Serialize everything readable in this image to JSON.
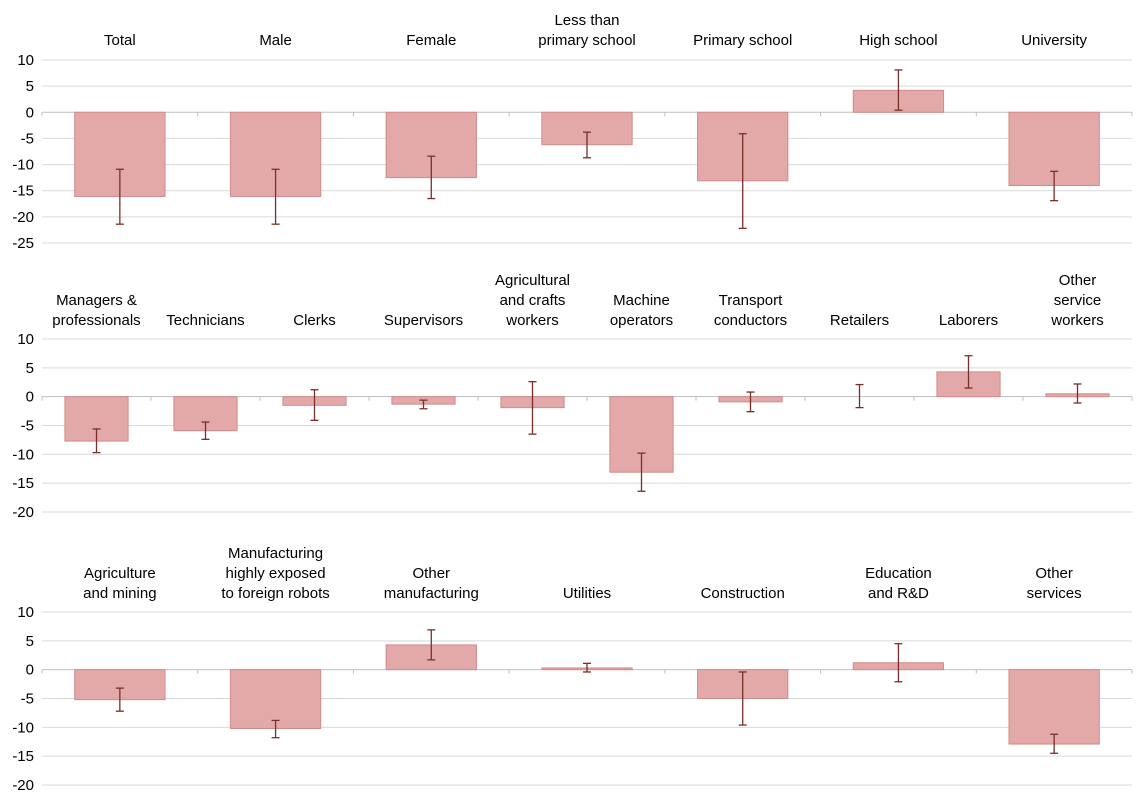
{
  "colors": {
    "bar_fill": "#e3a9a8",
    "bar_stroke": "#d08b8a",
    "error_bar": "#7a2e28",
    "grid": "#d9d9d9",
    "axis": "#bfbfbf"
  },
  "chart_data": [
    {
      "type": "bar",
      "error_bars": true,
      "grid": true,
      "ylim": [
        -25,
        10
      ],
      "yticks": [
        "10",
        "5",
        "0",
        "-5",
        "-10",
        "-15",
        "-20",
        "-25"
      ],
      "categories": [
        [
          "Total"
        ],
        [
          "Male"
        ],
        [
          "Female"
        ],
        [
          "Less than",
          "primary school"
        ],
        [
          "Primary school"
        ],
        [
          "High school"
        ],
        [
          "University"
        ]
      ],
      "values": [
        -16.1,
        -16.1,
        -12.5,
        -6.2,
        -13.1,
        4.2,
        -14.0
      ],
      "error_low": [
        -21.4,
        -21.4,
        -16.5,
        -8.7,
        -22.2,
        0.4,
        -16.9
      ],
      "error_high": [
        -10.9,
        -10.9,
        -8.4,
        -3.8,
        -4.1,
        8.1,
        -11.3
      ]
    },
    {
      "type": "bar",
      "error_bars": true,
      "grid": true,
      "ylim": [
        -20,
        10
      ],
      "yticks": [
        "10",
        "5",
        "0",
        "-5",
        "-10",
        "-15",
        "-20"
      ],
      "categories": [
        [
          "Managers &",
          "professionals"
        ],
        [
          "Technicians"
        ],
        [
          "Clerks"
        ],
        [
          "Supervisors"
        ],
        [
          "Agricultural",
          "and crafts",
          "workers"
        ],
        [
          "Machine",
          "operators"
        ],
        [
          "Transport",
          "conductors"
        ],
        [
          "Retailers"
        ],
        [
          "Laborers"
        ],
        [
          "Other",
          "service",
          "workers"
        ]
      ],
      "values": [
        -7.7,
        -5.9,
        -1.5,
        -1.3,
        -1.9,
        -13.1,
        -0.9,
        0.0,
        4.3,
        0.5
      ],
      "error_low": [
        -9.7,
        -7.4,
        -4.1,
        -2.1,
        -6.5,
        -16.4,
        -2.6,
        -1.9,
        1.5,
        -1.1
      ],
      "error_high": [
        -5.6,
        -4.4,
        1.2,
        -0.6,
        2.6,
        -9.8,
        0.8,
        2.1,
        7.1,
        2.2
      ]
    },
    {
      "type": "bar",
      "error_bars": true,
      "grid": true,
      "ylim": [
        -20,
        10
      ],
      "yticks": [
        "10",
        "5",
        "0",
        "-5",
        "-10",
        "-15",
        "-20"
      ],
      "categories": [
        [
          "Agriculture",
          "and mining"
        ],
        [
          "Manufacturing",
          "highly exposed",
          "to foreign robots"
        ],
        [
          "Other",
          "manufacturing"
        ],
        [
          "Utilities"
        ],
        [
          "Construction"
        ],
        [
          "Education",
          "and R&D"
        ],
        [
          "Other",
          "services"
        ]
      ],
      "values": [
        -5.2,
        -10.2,
        4.3,
        0.3,
        -5.0,
        1.2,
        -12.9
      ],
      "error_low": [
        -7.2,
        -11.8,
        1.7,
        -0.4,
        -9.6,
        -2.1,
        -14.5
      ],
      "error_high": [
        -3.2,
        -8.8,
        6.9,
        1.1,
        -0.4,
        4.5,
        -11.2
      ]
    }
  ]
}
